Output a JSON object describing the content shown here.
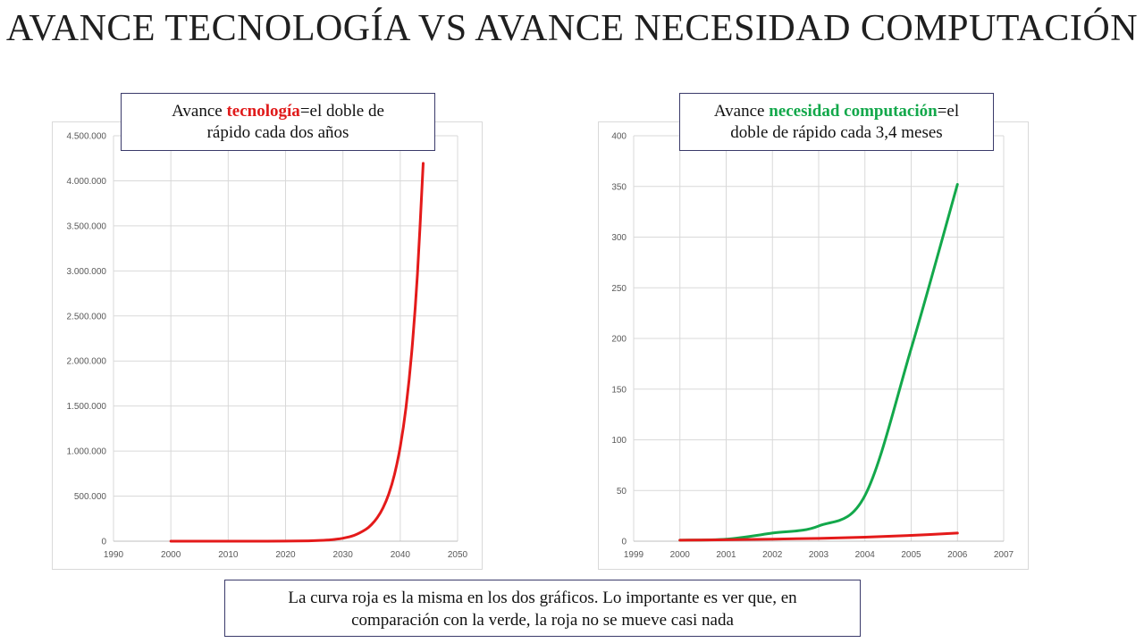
{
  "title": "AVANCE TECNOLOGÍA VS AVANCE NECESIDAD COMPUTACIÓN",
  "callout_left": {
    "prefix": "Avance ",
    "highlight": "tecnología",
    "line1_suffix": "=el doble de",
    "line2": "rápido cada dos años",
    "highlight_color": "#e01b1b"
  },
  "callout_right": {
    "prefix": "Avance ",
    "highlight": "necesidad computación",
    "line1_suffix": "=el",
    "line2": "doble de rápido cada 3,4 meses",
    "highlight_color": "#13a84b"
  },
  "note": {
    "line1": "La curva roja es la misma en los dos gráficos. Lo importante es ver que, en",
    "line2": "comparación con la verde, la roja no se mueve casi nada"
  },
  "chart_data": [
    {
      "type": "line",
      "title": "",
      "xlabel": "",
      "ylabel": "",
      "xlim": [
        1990,
        2050
      ],
      "ylim": [
        0,
        4500000
      ],
      "x_ticks": [
        1990,
        2000,
        2010,
        2020,
        2030,
        2040,
        2050
      ],
      "x_tick_labels": [
        "1990",
        "2000",
        "2010",
        "2020",
        "2030",
        "2040",
        "2050"
      ],
      "y_ticks": [
        0,
        500000,
        1000000,
        1500000,
        2000000,
        2500000,
        3000000,
        3500000,
        4000000,
        4500000
      ],
      "y_tick_labels": [
        "0",
        "500.000",
        "1.000.000",
        "1.500.000",
        "2.000.000",
        "2.500.000",
        "3.000.000",
        "3.500.000",
        "4.000.000",
        "4.500.000"
      ],
      "grid": true,
      "series": [
        {
          "color": "#e41a1a",
          "x": [
            2000,
            2005,
            2010,
            2015,
            2020,
            2024,
            2026,
            2028,
            2030,
            2032,
            2034,
            2035,
            2036,
            2037,
            2038,
            2039,
            2040,
            2041,
            2042,
            2043,
            2044
          ],
          "values": [
            1,
            6,
            32,
            181,
            1024,
            4096,
            8192,
            16384,
            32768,
            65536,
            131072,
            185364,
            262144,
            370728,
            524288,
            741455,
            1048576,
            1482910,
            2097152,
            2965821,
            4194304
          ]
        }
      ]
    },
    {
      "type": "line",
      "title": "",
      "xlabel": "",
      "ylabel": "",
      "xlim": [
        1999,
        2007
      ],
      "ylim": [
        0,
        400
      ],
      "x_ticks": [
        1999,
        2000,
        2001,
        2002,
        2003,
        2004,
        2005,
        2006,
        2007
      ],
      "x_tick_labels": [
        "1999",
        "2000",
        "2001",
        "2002",
        "2003",
        "2004",
        "2005",
        "2006",
        "2007"
      ],
      "y_ticks": [
        0,
        50,
        100,
        150,
        200,
        250,
        300,
        350,
        400
      ],
      "y_tick_labels": [
        "0",
        "50",
        "100",
        "150",
        "200",
        "250",
        "300",
        "350",
        "400"
      ],
      "grid": true,
      "series": [
        {
          "color": "#13a84b",
          "x": [
            2000,
            2001,
            2002,
            2003,
            2004,
            2005,
            2006
          ],
          "values": [
            1,
            2,
            8,
            15,
            45,
            190,
            352
          ]
        },
        {
          "color": "#e41a1a",
          "x": [
            2000,
            2001,
            2002,
            2003,
            2004,
            2005,
            2006
          ],
          "values": [
            1,
            1.4,
            2,
            2.8,
            4,
            5.7,
            8
          ]
        }
      ]
    }
  ]
}
